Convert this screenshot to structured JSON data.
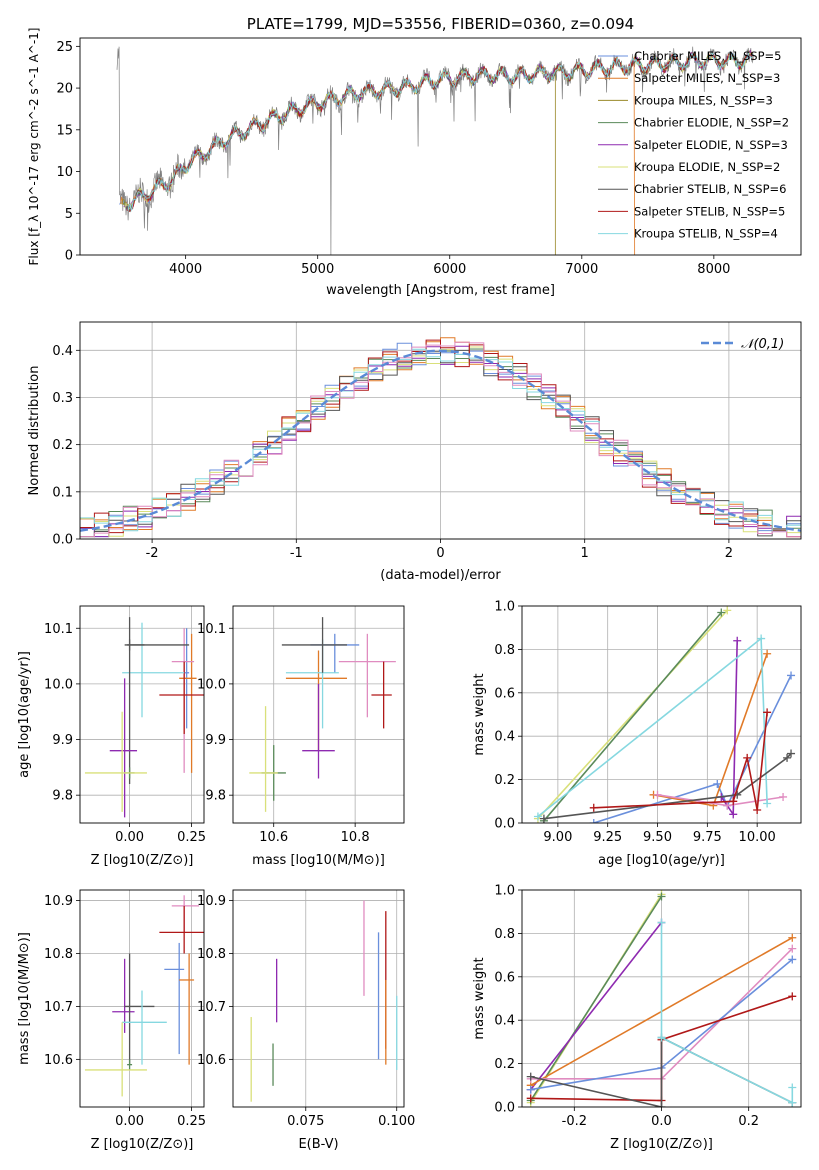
{
  "figure": {
    "title": "PLATE=1799, MJD=53556, FIBERID=0360, z=0.094"
  },
  "colors": {
    "Chabrier MILES": "#6a8fdc",
    "Salpeter MILES": "#e07a28",
    "Kroupa MILES": "#9a8a2a",
    "Chabrier ELODIE": "#5a8a5a",
    "Salpeter ELODIE": "#8e2ab0",
    "Kroupa ELODIE": "#d9e07a",
    "Chabrier STELIB": "#555555",
    "Salpeter STELIB": "#b01818",
    "Kroupa STELIB": "#86d8e0",
    "pink": "#e08cc0",
    "lime": "#c8e050"
  },
  "chart_data": [
    {
      "id": "spectrum",
      "type": "line",
      "title": "PLATE=1799, MJD=53556, FIBERID=0360, z=0.094",
      "xlabel": "wavelength [Angstrom, rest frame]",
      "ylabel": "Flux [f_λ 10^-17 erg cm^-2 s^-1 A^-1]",
      "xlim": [
        3200,
        8660
      ],
      "ylim": [
        0,
        26
      ],
      "xticks": [
        4000,
        5000,
        6000,
        7000,
        8000
      ],
      "yticks": [
        0,
        5,
        10,
        15,
        20,
        25
      ],
      "legend_position": "right",
      "legend": [
        "Chabrier MILES, N_SSP=5",
        "Salpeter MILES, N_SSP=3",
        "Kroupa MILES, N_SSP=3",
        "Chabrier ELODIE, N_SSP=2",
        "Salpeter ELODIE, N_SSP=3",
        "Kroupa ELODIE, N_SSP=2",
        "Chabrier STELIB, N_SSP=6",
        "Salpeter STELIB, N_SSP=5",
        "Kroupa STELIB, N_SSP=4"
      ],
      "legend_series": [
        "Chabrier MILES",
        "Salpeter MILES",
        "Kroupa MILES",
        "Chabrier ELODIE",
        "Salpeter ELODIE",
        "Kroupa ELODIE",
        "Chabrier STELIB",
        "Salpeter STELIB",
        "Kroupa STELIB"
      ],
      "continuum": {
        "x": [
          3500,
          3600,
          3700,
          3800,
          3900,
          4000,
          4100,
          4300,
          4500,
          4700,
          4900,
          5100,
          5300,
          5500,
          5700,
          5900,
          6100,
          6300,
          6500,
          6700,
          6900,
          7100,
          7300,
          7500,
          7700,
          7900,
          8100,
          8300
        ],
        "y": [
          5.8,
          6.5,
          7.2,
          8.2,
          9.0,
          10.8,
          11.8,
          13.8,
          15.3,
          16.6,
          17.8,
          18.6,
          19.4,
          19.8,
          20.2,
          21.0,
          21.3,
          21.6,
          21.4,
          21.8,
          21.9,
          22.3,
          22.6,
          22.8,
          23.0,
          23.3,
          23.2,
          23.4
        ]
      }
    },
    {
      "id": "residuals",
      "type": "line",
      "xlabel": "(data-model)/error",
      "ylabel": "Normed distribution",
      "xlim": [
        -2.5,
        2.5
      ],
      "ylim": [
        0,
        0.46
      ],
      "xticks": [
        -2,
        -1,
        0,
        1,
        2
      ],
      "yticks": [
        0.0,
        0.1,
        0.2,
        0.3,
        0.4
      ],
      "grid": true,
      "legend_position": "top-right",
      "legend": [
        "𝒩(0,1)"
      ],
      "gaussian": {
        "mean": 0,
        "sigma": 1,
        "color": "#5a8ad6",
        "style": "dashed"
      },
      "histogram_series": [
        "Chabrier MILES",
        "Salpeter MILES",
        "Chabrier ELODIE",
        "Salpeter ELODIE",
        "Kroupa ELODIE",
        "Chabrier STELIB",
        "Salpeter STELIB",
        "Kroupa STELIB",
        "pink"
      ]
    },
    {
      "id": "age_vs_Z",
      "type": "scatter",
      "xlabel": "Z [log10(Z/Z⊙)]",
      "ylabel": "age [log10(age/yr)]",
      "xlim": [
        -0.2,
        0.3
      ],
      "ylim": [
        9.75,
        10.14
      ],
      "xticks": [
        0.0,
        0.25
      ],
      "yticks": [
        9.8,
        9.9,
        10.0,
        10.1
      ],
      "grid": true,
      "points": [
        {
          "s": "Chabrier MILES",
          "x": 0.23,
          "y": 10.02,
          "xe": [
            0.01,
            0.01
          ],
          "ye": [
            0.1,
            0.08
          ]
        },
        {
          "s": "Salpeter MILES",
          "x": 0.25,
          "y": 10.01,
          "xe": [
            0.05,
            0.02
          ],
          "ye": [
            0.17,
            0.08
          ]
        },
        {
          "s": "pink",
          "x": 0.22,
          "y": 10.04,
          "xe": [
            0.05,
            0.04
          ],
          "ye": [
            0.2,
            0.06
          ]
        },
        {
          "s": "Salpeter STELIB",
          "x": 0.22,
          "y": 9.98,
          "xe": [
            0.1,
            0.08
          ],
          "ye": [
            0.07,
            0.06
          ]
        },
        {
          "s": "Kroupa STELIB",
          "x": 0.05,
          "y": 10.02,
          "xe": [
            0.08,
            0.17
          ],
          "ye": [
            0.08,
            0.09
          ]
        },
        {
          "s": "Chabrier STELIB",
          "x": 0.0,
          "y": 10.07,
          "xe": [
            0.02,
            0.06
          ],
          "ye": [
            0.25,
            0.05
          ]
        },
        {
          "s": "Chabrier STELIB",
          "x": 0.0,
          "y": 10.07,
          "xe": [
            0.01,
            0.24
          ],
          "ye": [
            0.01,
            0.01
          ]
        },
        {
          "s": "Salpeter ELODIE",
          "x": -0.02,
          "y": 9.88,
          "xe": [
            0.06,
            0.05
          ],
          "ye": [
            0.12,
            0.13
          ]
        },
        {
          "s": "Chabrier ELODIE",
          "x": 0.0,
          "y": 9.84,
          "xe": [
            0.02,
            0.02
          ],
          "ye": [
            0.01,
            0.01
          ]
        },
        {
          "s": "Kroupa ELODIE",
          "x": -0.03,
          "y": 9.84,
          "xe": [
            0.15,
            0.1
          ],
          "ye": [
            0.07,
            0.11
          ]
        }
      ]
    },
    {
      "id": "age_vs_mass",
      "type": "scatter",
      "xlabel": "mass [log10(M/M⊙)]",
      "ylabel": "",
      "xlim": [
        10.5,
        10.92
      ],
      "ylim": [
        9.75,
        10.14
      ],
      "xticks": [
        10.6,
        10.8
      ],
      "yticks": [
        9.8,
        9.9,
        10.0,
        10.1
      ],
      "grid": true,
      "points": [
        {
          "s": "Chabrier MILES",
          "x": 10.75,
          "y": 10.07,
          "xe": [
            0.06,
            0.06
          ],
          "ye": [
            0.05,
            0.02
          ]
        },
        {
          "s": "Salpeter MILES",
          "x": 10.71,
          "y": 10.01,
          "xe": [
            0.08,
            0.07
          ],
          "ye": [
            0.13,
            0.05
          ]
        },
        {
          "s": "pink",
          "x": 10.83,
          "y": 10.04,
          "xe": [
            0.07,
            0.07
          ],
          "ye": [
            0.1,
            0.05
          ]
        },
        {
          "s": "Salpeter STELIB",
          "x": 10.87,
          "y": 9.98,
          "xe": [
            0.03,
            0.02
          ],
          "ye": [
            0.06,
            0.06
          ]
        },
        {
          "s": "Kroupa STELIB",
          "x": 10.72,
          "y": 10.02,
          "xe": [
            0.09,
            0.04
          ],
          "ye": [
            0.1,
            0.06
          ]
        },
        {
          "s": "Chabrier STELIB",
          "x": 10.72,
          "y": 10.07,
          "xe": [
            0.1,
            0.06
          ],
          "ye": [
            0.05,
            0.05
          ]
        },
        {
          "s": "Salpeter ELODIE",
          "x": 10.71,
          "y": 9.88,
          "xe": [
            0.04,
            0.04
          ],
          "ye": [
            0.05,
            0.12
          ]
        },
        {
          "s": "Chabrier ELODIE",
          "x": 10.6,
          "y": 9.84,
          "xe": [
            0.03,
            0.03
          ],
          "ye": [
            0.05,
            0.05
          ]
        },
        {
          "s": "Kroupa ELODIE",
          "x": 10.58,
          "y": 9.84,
          "xe": [
            0.04,
            0.03
          ],
          "ye": [
            0.07,
            0.12
          ]
        }
      ]
    },
    {
      "id": "weight_vs_age",
      "type": "line",
      "xlabel": "age [log10(age/yr)]",
      "ylabel": "mass weight",
      "xlim": [
        8.82,
        10.22
      ],
      "ylim": [
        0,
        1.0
      ],
      "xticks": [
        9.0,
        9.25,
        9.5,
        9.75,
        10.0
      ],
      "yticks": [
        0.0,
        0.2,
        0.4,
        0.6,
        0.8,
        1.0
      ],
      "grid": true,
      "series": [
        {
          "s": "Kroupa ELODIE",
          "x": [
            8.9,
            9.85
          ],
          "y": [
            0.02,
            0.98
          ]
        },
        {
          "s": "Chabrier ELODIE",
          "x": [
            8.93,
            9.82
          ],
          "y": [
            0.01,
            0.97
          ]
        },
        {
          "s": "Chabrier MILES",
          "x": [
            9.18,
            9.8,
            9.85,
            10.17
          ],
          "y": [
            0.0,
            0.18,
            0.08,
            0.68
          ]
        },
        {
          "s": "Salpeter MILES",
          "x": [
            9.48,
            9.78,
            10.05
          ],
          "y": [
            0.13,
            0.08,
            0.78
          ]
        },
        {
          "s": "Salpeter ELODIE",
          "x": [
            9.82,
            9.88,
            9.9
          ],
          "y": [
            0.12,
            0.04,
            0.84
          ]
        },
        {
          "s": "pink",
          "x": [
            9.5,
            9.85,
            10.13
          ],
          "y": [
            0.13,
            0.08,
            0.12
          ]
        },
        {
          "s": "Kroupa STELIB",
          "x": [
            8.9,
            10.02,
            10.05
          ],
          "y": [
            0.03,
            0.85,
            0.09
          ]
        },
        {
          "s": "Chabrier STELIB",
          "x": [
            8.93,
            9.9,
            10.15,
            10.17
          ],
          "y": [
            0.02,
            0.13,
            0.3,
            0.32
          ]
        },
        {
          "s": "Salpeter STELIB",
          "x": [
            9.18,
            9.88,
            9.95,
            10.0,
            10.05
          ],
          "y": [
            0.07,
            0.1,
            0.3,
            0.06,
            0.51
          ]
        }
      ]
    },
    {
      "id": "mass_vs_Z",
      "type": "scatter",
      "xlabel": "Z [log10(Z/Z⊙)]",
      "ylabel": "mass [log10(M/M⊙)]",
      "xlim": [
        -0.2,
        0.3
      ],
      "ylim": [
        10.51,
        10.92
      ],
      "xticks": [
        0.0,
        0.25
      ],
      "yticks": [
        10.6,
        10.7,
        10.8,
        10.9
      ],
      "grid": true,
      "points": [
        {
          "s": "pink",
          "x": 0.22,
          "y": 10.89,
          "xe": [
            0.05,
            0.06
          ],
          "ye": [
            0.05,
            0.02
          ]
        },
        {
          "s": "Salpeter STELIB",
          "x": 0.22,
          "y": 10.84,
          "xe": [
            0.1,
            0.08
          ],
          "ye": [
            0.04,
            0.05
          ]
        },
        {
          "s": "Chabrier MILES",
          "x": 0.2,
          "y": 10.77,
          "xe": [
            0.06,
            0.02
          ],
          "ye": [
            0.16,
            0.05
          ]
        },
        {
          "s": "Salpeter MILES",
          "x": 0.24,
          "y": 10.75,
          "xe": [
            0.04,
            0.02
          ],
          "ye": [
            0.16,
            0.05
          ]
        },
        {
          "s": "Salpeter ELODIE",
          "x": -0.02,
          "y": 10.69,
          "xe": [
            0.05,
            0.04
          ],
          "ye": [
            0.04,
            0.1
          ]
        },
        {
          "s": "Chabrier STELIB",
          "x": 0.0,
          "y": 10.7,
          "xe": [
            0.02,
            0.1
          ],
          "ye": [
            0.11,
            0.1
          ]
        },
        {
          "s": "Kroupa STELIB",
          "x": 0.05,
          "y": 10.67,
          "xe": [
            0.08,
            0.1
          ],
          "ye": [
            0.08,
            0.06
          ]
        },
        {
          "s": "Chabrier ELODIE",
          "x": 0.0,
          "y": 10.59,
          "xe": [
            0.01,
            0.01
          ],
          "ye": [
            0.01,
            0.01
          ]
        },
        {
          "s": "Kroupa ELODIE",
          "x": -0.03,
          "y": 10.58,
          "xe": [
            0.15,
            0.1
          ],
          "ye": [
            0.05,
            0.09
          ]
        }
      ]
    },
    {
      "id": "mass_vs_ebv",
      "type": "scatter",
      "xlabel": "E(B-V)",
      "ylabel": "",
      "xlim": [
        0.055,
        0.102
      ],
      "ylim": [
        10.51,
        10.92
      ],
      "xticks": [
        0.075,
        0.1
      ],
      "yticks": [
        10.6,
        10.7,
        10.8,
        10.9
      ],
      "grid": true,
      "points": [
        {
          "s": "Kroupa ELODIE",
          "x": 0.06,
          "y": 10.6,
          "ye": [
            0.08,
            0.08
          ]
        },
        {
          "s": "Chabrier ELODIE",
          "x": 0.066,
          "y": 10.59,
          "ye": [
            0.04,
            0.04
          ]
        },
        {
          "s": "Salpeter ELODIE",
          "x": 0.067,
          "y": 10.72,
          "ye": [
            0.05,
            0.07
          ]
        },
        {
          "s": "pink",
          "x": 0.091,
          "y": 10.81,
          "ye": [
            0.09,
            0.09
          ]
        },
        {
          "s": "Chabrier MILES",
          "x": 0.095,
          "y": 10.72,
          "ye": [
            0.12,
            0.12
          ]
        },
        {
          "s": "Salpeter STELIB",
          "x": 0.097,
          "y": 10.75,
          "ye": [
            0.13,
            0.13
          ]
        },
        {
          "s": "Salpeter MILES",
          "x": 0.097,
          "y": 10.67,
          "ye": [
            0.08,
            0.08
          ]
        },
        {
          "s": "Kroupa STELIB",
          "x": 0.1,
          "y": 10.65,
          "ye": [
            0.07,
            0.07
          ]
        }
      ]
    },
    {
      "id": "weight_vs_Z",
      "type": "line",
      "xlabel": "Z [log10(Z/Z⊙)]",
      "ylabel": "mass weight",
      "xlim": [
        -0.32,
        0.32
      ],
      "ylim": [
        0,
        1.0
      ],
      "xticks": [
        -0.2,
        0.0,
        0.2
      ],
      "yticks": [
        0.0,
        0.2,
        0.4,
        0.6,
        0.8,
        1.0
      ],
      "grid": true,
      "series": [
        {
          "s": "Kroupa ELODIE",
          "x": [
            -0.3,
            0.0
          ],
          "y": [
            0.02,
            0.98
          ]
        },
        {
          "s": "Chabrier ELODIE",
          "x": [
            -0.3,
            0.0
          ],
          "y": [
            0.03,
            0.97
          ]
        },
        {
          "s": "Salpeter ELODIE",
          "x": [
            -0.3,
            0.0
          ],
          "y": [
            0.08,
            0.85
          ]
        },
        {
          "s": "Salpeter MILES",
          "x": [
            -0.3,
            0.3
          ],
          "y": [
            0.1,
            0.78
          ]
        },
        {
          "s": "pink",
          "x": [
            -0.3,
            0.0,
            0.3
          ],
          "y": [
            0.13,
            0.13,
            0.73
          ]
        },
        {
          "s": "Chabrier MILES",
          "x": [
            -0.3,
            0.0,
            0.3
          ],
          "y": [
            0.08,
            0.18,
            0.68
          ]
        },
        {
          "s": "Salpeter STELIB",
          "x": [
            -0.3,
            0.0,
            0.0,
            0.3
          ],
          "y": [
            0.04,
            0.03,
            0.31,
            0.51
          ]
        },
        {
          "s": "Chabrier STELIB",
          "x": [
            -0.3,
            0.0,
            0.0,
            0.3
          ],
          "y": [
            0.14,
            0.0,
            0.32,
            0.02
          ]
        },
        {
          "s": "Kroupa STELIB",
          "x": [
            0.0,
            0.0,
            0.3,
            0.3
          ],
          "y": [
            0.85,
            0.32,
            0.02,
            0.09
          ]
        }
      ]
    }
  ]
}
